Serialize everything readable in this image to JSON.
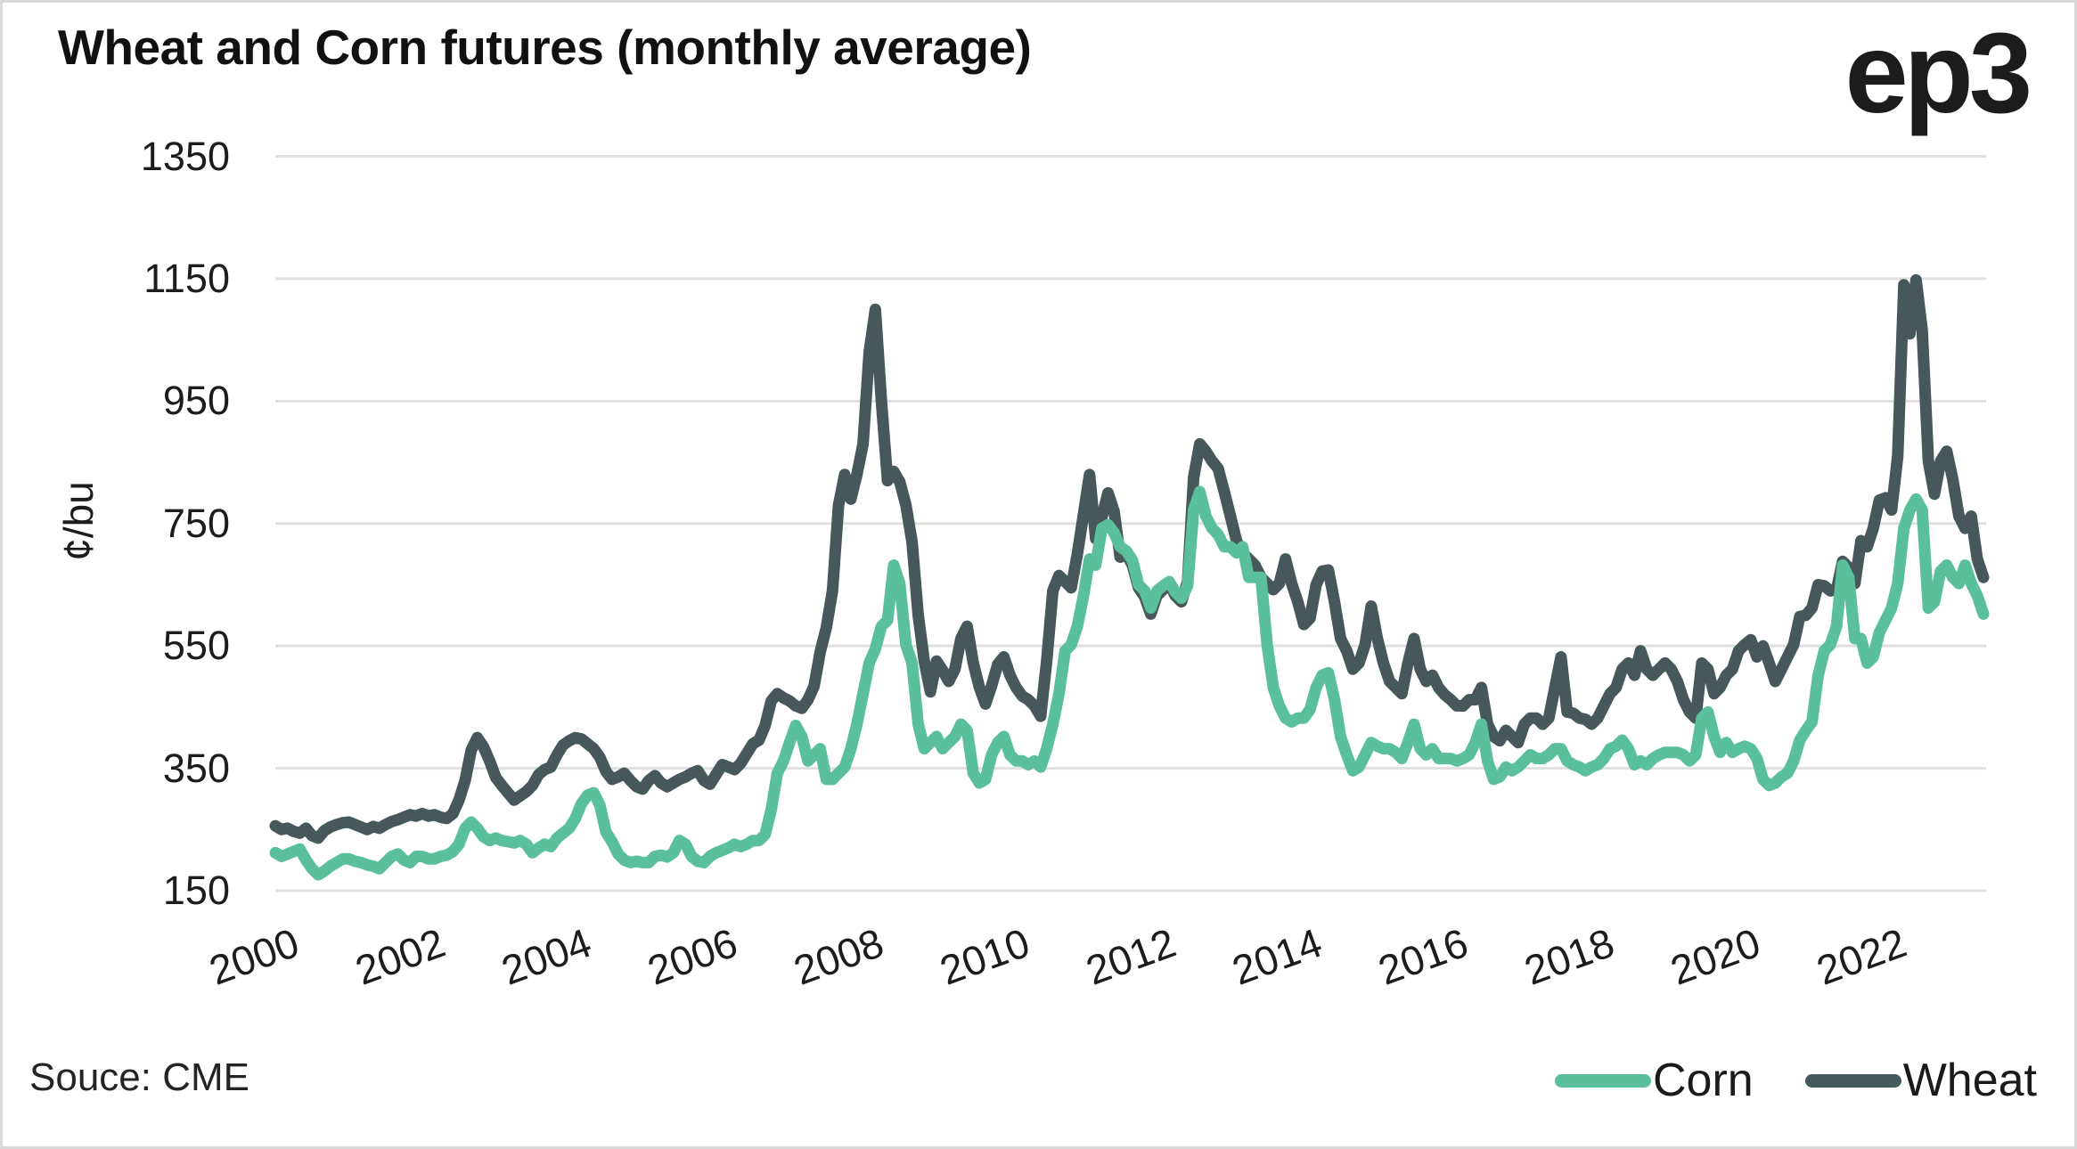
{
  "header": {
    "title": "Wheat and Corn futures (monthly average)",
    "logo": "ep3"
  },
  "source": {
    "label": "Souce: CME"
  },
  "legend": {
    "position": "bottom-right",
    "items": [
      {
        "label": "Corn",
        "color": "#5abf9b"
      },
      {
        "label": "Wheat",
        "color": "#46585a"
      }
    ]
  },
  "axes": {
    "ylabel": "¢/bu",
    "y_ticks": [
      1350,
      1150,
      950,
      750,
      550,
      350,
      150
    ],
    "x_ticks": [
      2000,
      2002,
      2004,
      2006,
      2008,
      2010,
      2012,
      2014,
      2016,
      2018,
      2020,
      2022
    ]
  },
  "chart_data": {
    "type": "line",
    "title": "Wheat and Corn futures (monthly average)",
    "xlabel": "",
    "ylabel": "¢/bu",
    "units": "cents per bushel",
    "freq": "monthly",
    "x_start": "2000-01",
    "x_end": "2023-04",
    "ylim": [
      150,
      1350
    ],
    "y_ticks": [
      150,
      350,
      550,
      750,
      950,
      1150,
      1350
    ],
    "x_tick_years": [
      2000,
      2002,
      2004,
      2006,
      2008,
      2010,
      2012,
      2014,
      2016,
      2018,
      2020,
      2022
    ],
    "grid": "horizontal",
    "legend_position": "bottom-right",
    "series": [
      {
        "name": "Wheat",
        "color": "#46585a",
        "values": [
          256,
          250,
          252,
          247,
          244,
          252,
          240,
          236,
          248,
          254,
          258,
          261,
          262,
          258,
          254,
          250,
          255,
          252,
          258,
          263,
          266,
          270,
          274,
          272,
          276,
          272,
          274,
          270,
          268,
          276,
          298,
          330,
          380,
          400,
          385,
          362,
          335,
          322,
          310,
          298,
          305,
          312,
          322,
          340,
          348,
          352,
          372,
          388,
          395,
          400,
          398,
          390,
          382,
          368,
          345,
          332,
          336,
          342,
          330,
          320,
          316,
          330,
          338,
          326,
          320,
          326,
          332,
          336,
          342,
          346,
          330,
          324,
          340,
          356,
          352,
          348,
          358,
          374,
          390,
          396,
          420,
          460,
          472,
          465,
          460,
          452,
          448,
          462,
          484,
          540,
          580,
          640,
          780,
          830,
          790,
          830,
          880,
          1030,
          1100,
          950,
          820,
          835,
          818,
          780,
          720,
          600,
          525,
          475,
          525,
          510,
          492,
          512,
          562,
          582,
          522,
          482,
          455,
          485,
          520,
          532,
          502,
          482,
          468,
          462,
          452,
          435,
          525,
          640,
          665,
          655,
          645,
          700,
          765,
          830,
          725,
          760,
          800,
          770,
          695,
          700,
          682,
          645,
          630,
          602,
          632,
          642,
          652,
          632,
          622,
          655,
          825,
          880,
          868,
          852,
          840,
          802,
          762,
          722,
          702,
          692,
          682,
          662,
          652,
          642,
          652,
          692,
          652,
          622,
          585,
          595,
          650,
          672,
          674,
          622,
          562,
          542,
          512,
          522,
          552,
          615,
          562,
          522,
          492,
          482,
          472,
          522,
          562,
          512,
          492,
          502,
          482,
          470,
          462,
          452,
          452,
          462,
          462,
          482,
          422,
          402,
          395,
          412,
          402,
          392,
          422,
          432,
          432,
          422,
          432,
          482,
          532,
          442,
          440,
          432,
          430,
          422,
          432,
          452,
          472,
          482,
          512,
          522,
          502,
          542,
          512,
          502,
          512,
          522,
          512,
          492,
          462,
          442,
          432,
          522,
          512,
          472,
          482,
          502,
          512,
          542,
          552,
          560,
          532,
          550,
          522,
          492,
          512,
          532,
          552,
          598,
          600,
          612,
          650,
          648,
          640,
          642,
          688,
          678,
          652,
          722,
          712,
          742,
          788,
          792,
          772,
          860,
          1140,
          1060,
          1148,
          1065,
          852,
          798,
          852,
          868,
          822,
          762,
          742,
          762,
          692,
          662
        ]
      },
      {
        "name": "Corn",
        "color": "#5abf9b",
        "values": [
          212,
          206,
          210,
          214,
          218,
          200,
          186,
          176,
          182,
          190,
          196,
          202,
          202,
          198,
          196,
          192,
          190,
          186,
          196,
          206,
          210,
          200,
          196,
          206,
          206,
          202,
          202,
          206,
          208,
          214,
          226,
          252,
          262,
          252,
          238,
          232,
          236,
          232,
          230,
          228,
          232,
          226,
          212,
          220,
          226,
          222,
          236,
          244,
          252,
          268,
          292,
          306,
          310,
          290,
          246,
          230,
          210,
          200,
          196,
          198,
          196,
          196,
          206,
          208,
          205,
          212,
          232,
          226,
          206,
          198,
          196,
          206,
          212,
          216,
          220,
          226,
          222,
          226,
          232,
          232,
          242,
          282,
          342,
          362,
          392,
          420,
          402,
          362,
          372,
          382,
          332,
          332,
          342,
          352,
          382,
          422,
          472,
          522,
          545,
          582,
          592,
          682,
          652,
          552,
          522,
          422,
          382,
          392,
          402,
          382,
          392,
          402,
          422,
          412,
          342,
          326,
          332,
          372,
          392,
          402,
          372,
          362,
          362,
          356,
          362,
          352,
          382,
          422,
          472,
          542,
          552,
          582,
          632,
          692,
          682,
          742,
          748,
          735,
          712,
          705,
          690,
          650,
          640,
          612,
          640,
          648,
          655,
          638,
          628,
          648,
          772,
          802,
          762,
          742,
          732,
          712,
          712,
          702,
          712,
          662,
          662,
          662,
          552,
          482,
          452,
          432,
          426,
          432,
          432,
          446,
          482,
          502,
          506,
          462,
          402,
          372,
          346,
          352,
          372,
          392,
          386,
          382,
          382,
          376,
          366,
          392,
          422,
          382,
          372,
          382,
          366,
          366,
          366,
          362,
          366,
          372,
          392,
          422,
          362,
          332,
          336,
          352,
          346,
          352,
          362,
          372,
          366,
          366,
          372,
          382,
          382,
          362,
          356,
          352,
          346,
          352,
          356,
          366,
          382,
          386,
          396,
          382,
          356,
          362,
          356,
          366,
          372,
          376,
          376,
          376,
          372,
          362,
          372,
          432,
          442,
          402,
          376,
          392,
          376,
          382,
          386,
          382,
          366,
          332,
          322,
          326,
          336,
          342,
          362,
          396,
          412,
          426,
          502,
          542,
          552,
          582,
          682,
          662,
          562,
          562,
          522,
          532,
          572,
          592,
          612,
          652,
          742,
          772,
          790,
          772,
          612,
          622,
          672,
          682,
          662,
          652,
          682,
          652,
          632,
          602
        ]
      }
    ]
  }
}
